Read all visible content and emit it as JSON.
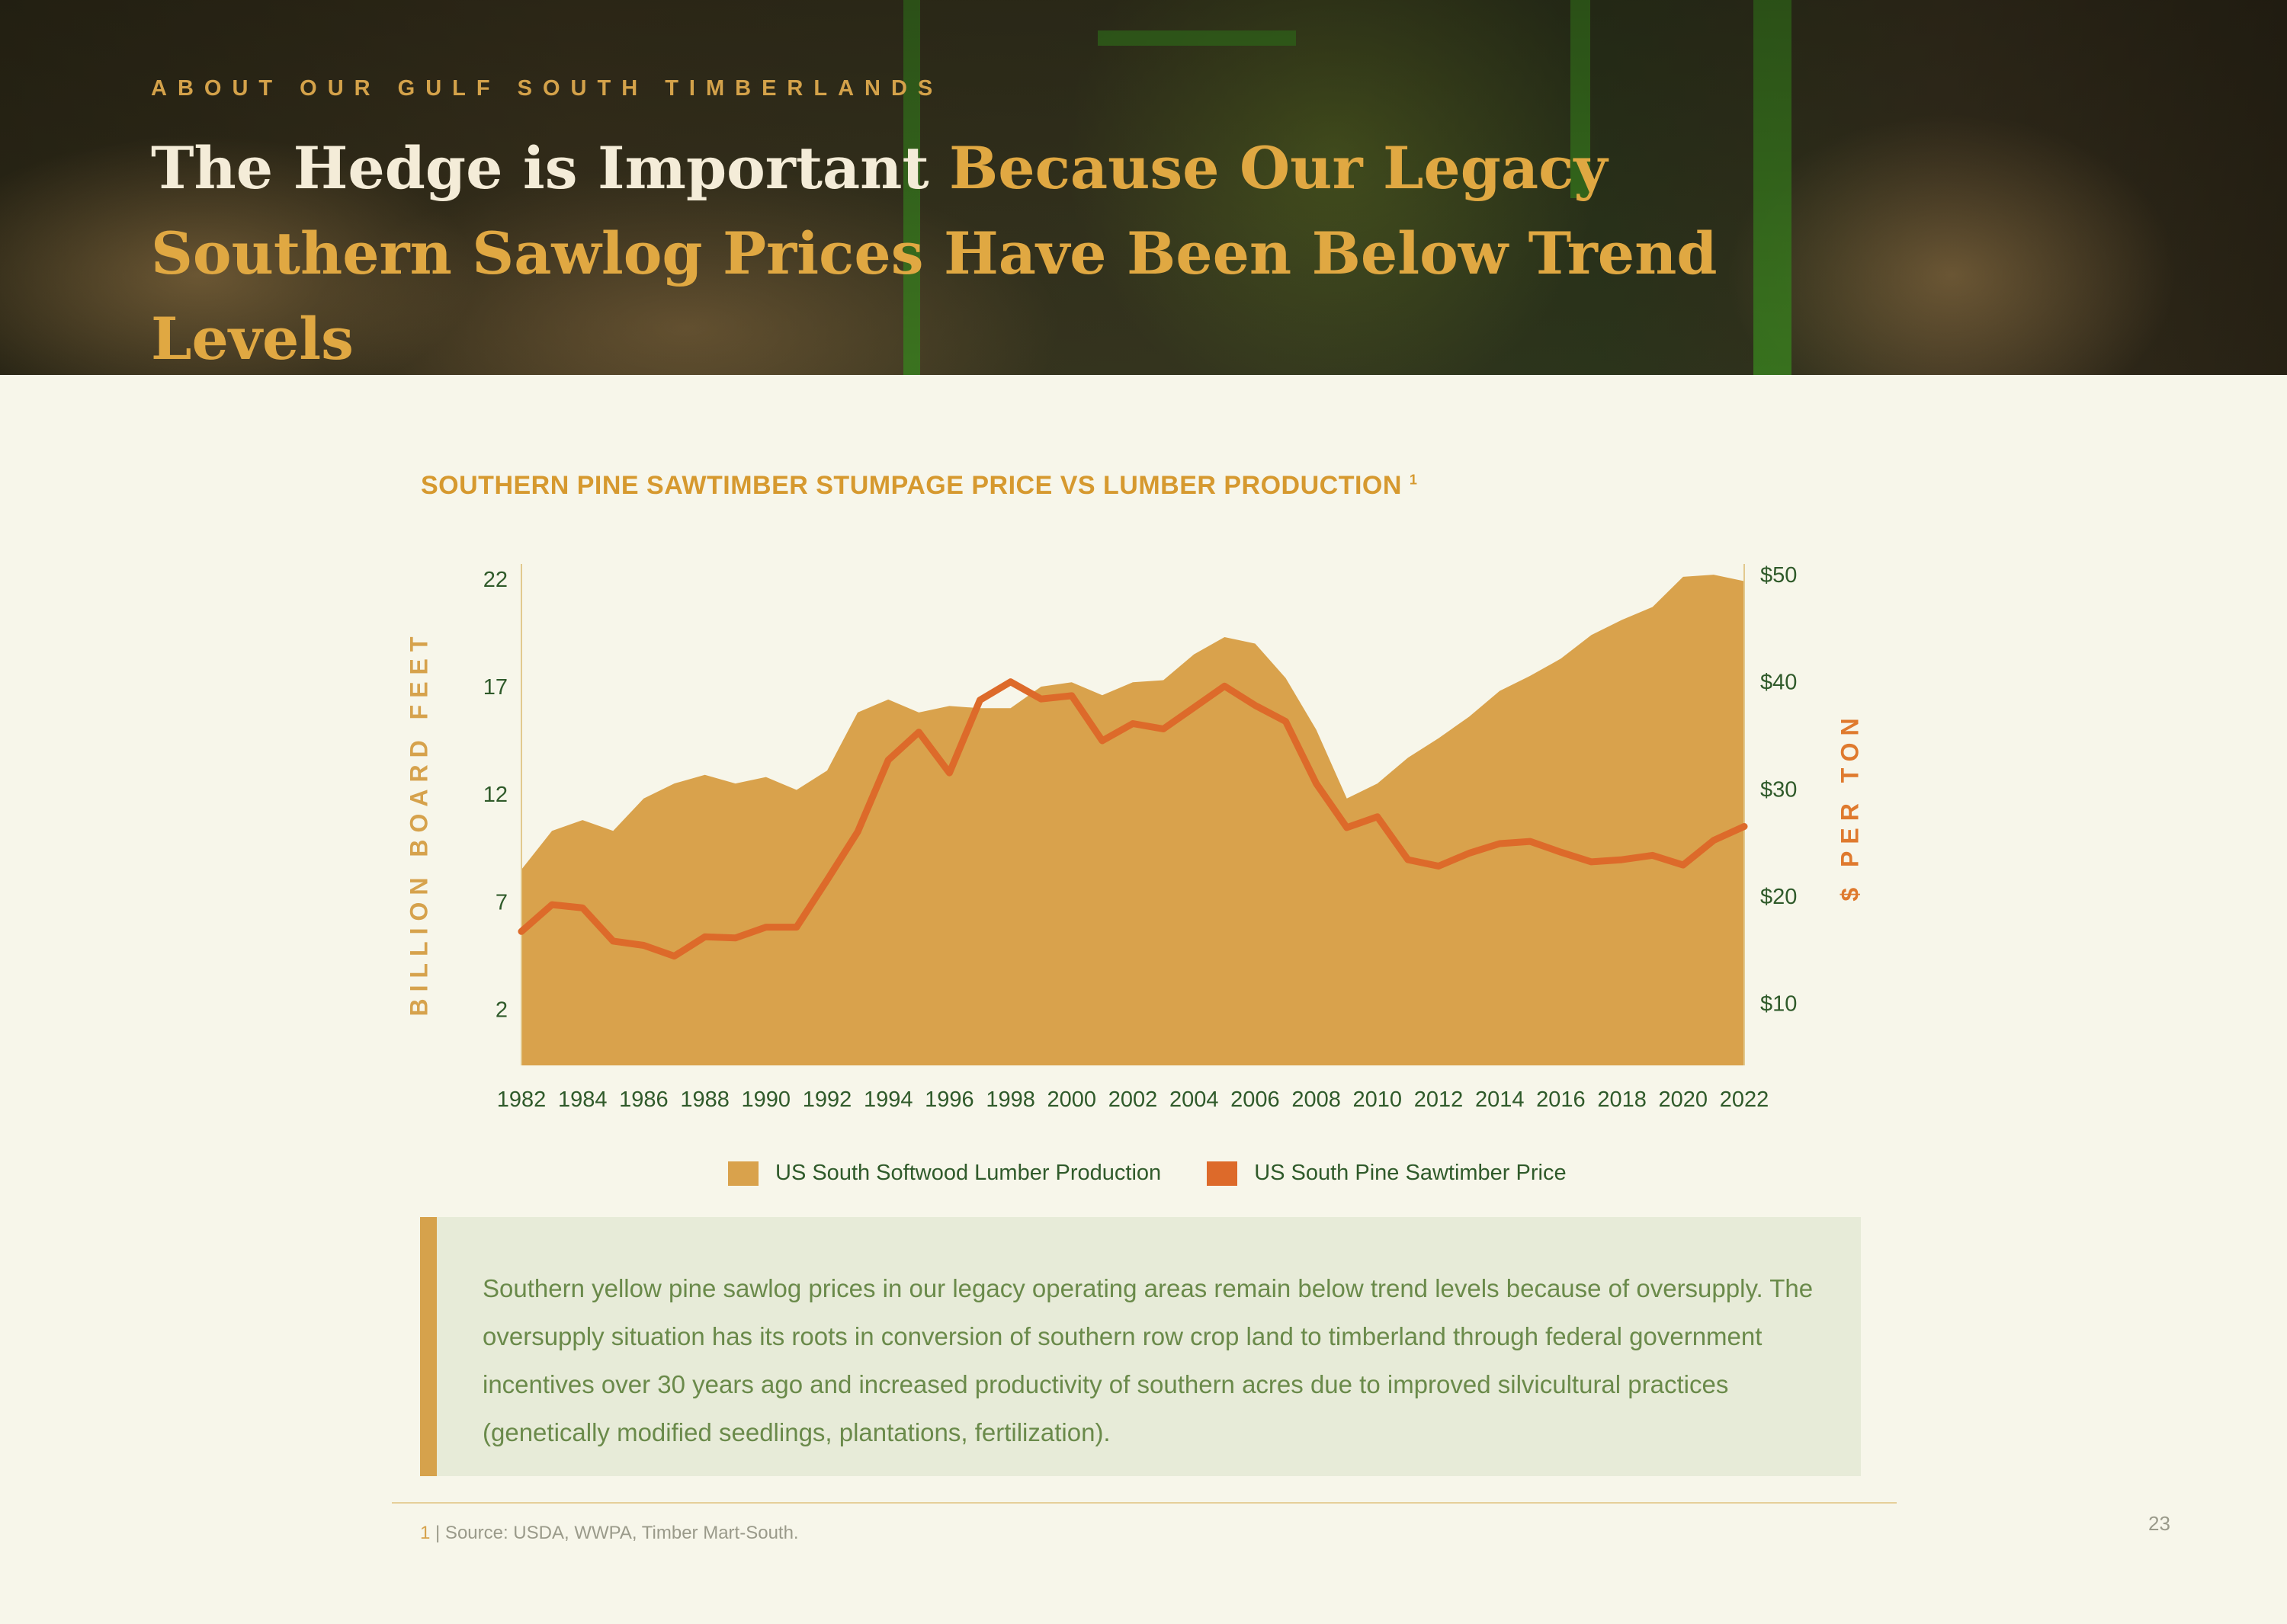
{
  "header": {
    "eyebrow": "ABOUT OUR GULF SOUTH TIMBERLANDS",
    "title_part1": "The Hedge is Important ",
    "title_part2": "Because Our Legacy Southern Sawlog Prices Have Been Below Trend Levels"
  },
  "chart_data": {
    "type": "area",
    "title": "SOUTHERN PINE SAWTIMBER STUMPAGE PRICE VS LUMBER PRODUCTION",
    "title_footnote_marker": "1",
    "ylabel": "BILLION BOARD FEET",
    "y2label": "$ PER TON",
    "ylim": [
      -0.6,
      22.7
    ],
    "y2lim": [
      4.2,
      51
    ],
    "yticks": [
      "22",
      "17",
      "12",
      "7",
      "2"
    ],
    "y2ticks": [
      "$50",
      "$40",
      "$30",
      "$20",
      "$10"
    ],
    "xticks": [
      "1982",
      "1984",
      "1986",
      "1988",
      "1990",
      "1992",
      "1994",
      "1996",
      "1998",
      "2000",
      "2002",
      "2004",
      "2006",
      "2008",
      "2010",
      "2012",
      "2014",
      "2016",
      "2018",
      "2020",
      "2022"
    ],
    "x": [
      1982,
      1983,
      1984,
      1985,
      1986,
      1987,
      1988,
      1989,
      1990,
      1991,
      1992,
      1993,
      1994,
      1995,
      1996,
      1997,
      1998,
      1999,
      2000,
      2001,
      2002,
      2003,
      2004,
      2005,
      2006,
      2007,
      2008,
      2009,
      2010,
      2011,
      2012,
      2013,
      2014,
      2015,
      2016,
      2017,
      2018,
      2019,
      2020,
      2021,
      2022
    ],
    "series": [
      {
        "name": "US South Softwood Lumber Production",
        "kind": "area",
        "color": "#d9a24c",
        "values": [
          8.5,
          10.3,
          10.8,
          10.3,
          11.8,
          12.5,
          12.9,
          12.5,
          12.8,
          12.2,
          13.1,
          15.8,
          16.4,
          15.8,
          16.1,
          16.0,
          16.0,
          17.0,
          17.2,
          16.6,
          17.2,
          17.3,
          18.5,
          19.3,
          19.0,
          17.4,
          15.0,
          11.8,
          12.5,
          13.7,
          14.6,
          15.6,
          16.8,
          17.5,
          18.3,
          19.4,
          20.1,
          20.7,
          22.1,
          22.2,
          21.9
        ]
      },
      {
        "name": "US South Pine Sawtimber Price",
        "kind": "line",
        "color": "#dd6a2a",
        "values": [
          16.7,
          19.2,
          18.9,
          15.8,
          15.4,
          14.4,
          16.2,
          16.1,
          17.1,
          17.1,
          21.5,
          26.0,
          32.7,
          35.3,
          31.5,
          38.3,
          40.0,
          38.4,
          38.7,
          34.5,
          36.1,
          35.6,
          37.6,
          39.6,
          37.8,
          36.3,
          30.5,
          26.4,
          27.4,
          23.4,
          22.8,
          24.0,
          24.9,
          25.1,
          24.1,
          23.2,
          23.4,
          23.8,
          22.9,
          25.2,
          26.5
        ]
      }
    ]
  },
  "legend": {
    "items": [
      {
        "label": "US South Softwood Lumber Production",
        "color": "#d9a24c"
      },
      {
        "label": "US South Pine Sawtimber Price",
        "color": "#dd6a2a"
      }
    ]
  },
  "note": {
    "text": "Southern yellow pine sawlog prices in our legacy operating areas remain below trend levels because of oversupply. The oversupply situation has its roots in conversion of southern row crop land to timberland through federal government incentives over 30 years ago and increased productivity of southern acres due to improved silvicultural practices (genetically modified seedlings, plantations, fertilization)."
  },
  "footnote": {
    "number": "1",
    "text": " | Source: USDA, WWPA, Timber Mart-South."
  },
  "page_number": "23"
}
